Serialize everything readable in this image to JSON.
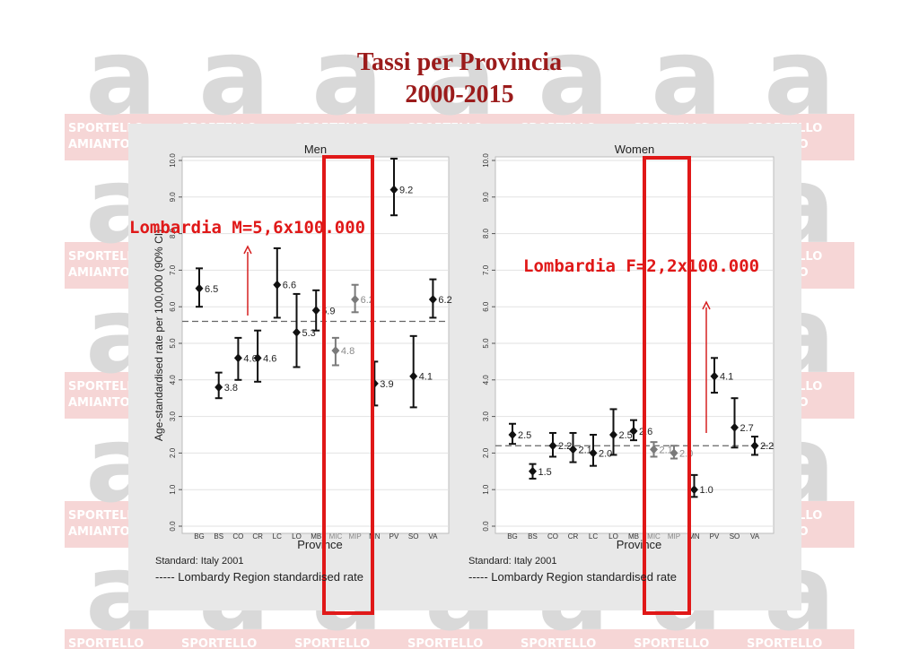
{
  "slide": {
    "title_line1": "Tassi per Provincia",
    "title_line2": "2000-2015",
    "watermark_text": "SPORTELLO AMIANTO",
    "watermark_glyph": "a",
    "colors": {
      "title": "#9b1b1b",
      "annotation": "#e01818",
      "watermark": "#d9d9d9",
      "panel": "#e8e8e8"
    }
  },
  "annotations": {
    "men": "Lombardia M=5,6x100.000",
    "women": "Lombardia F=2,2x100.000"
  },
  "footnotes": {
    "men_standard": "Standard: Italy 2001",
    "men_legend": "----- Lombardy Region standardised rate",
    "women_standard": "Standard: Italy 2001",
    "women_legend": "----- Lombardy Region standardised rate"
  },
  "chart_data": [
    {
      "type": "scatter",
      "title": "Men",
      "xlabel": "Province",
      "ylabel": "Age-standardised rate per 100,000 (90% CI)",
      "ylim": [
        0,
        10
      ],
      "yticks": [
        "0.0",
        "1.0",
        "2.0",
        "3.0",
        "4.0",
        "5.0",
        "6.0",
        "7.0",
        "8.0",
        "9.0",
        "10.0"
      ],
      "categories": [
        "BG",
        "BS",
        "CO",
        "CR",
        "LC",
        "LO",
        "MB",
        "MIC",
        "MIP",
        "MN",
        "PV",
        "SO",
        "VA"
      ],
      "values": [
        6.5,
        3.8,
        4.6,
        4.6,
        6.6,
        5.3,
        5.9,
        4.8,
        6.2,
        3.9,
        9.2,
        4.1,
        6.2
      ],
      "value_labels": [
        "6.5",
        "3.8",
        "4.6",
        "4.6",
        "6.6",
        "5.3",
        "5.9",
        "4.8",
        "6.2",
        "3.9",
        "9.2",
        "4.1",
        "6.2"
      ],
      "ci_low": [
        6.0,
        3.5,
        4.0,
        3.95,
        5.7,
        4.35,
        5.35,
        4.4,
        5.85,
        3.3,
        8.5,
        3.25,
        5.7
      ],
      "ci_high": [
        7.05,
        4.2,
        5.15,
        5.35,
        7.6,
        6.35,
        6.45,
        5.15,
        6.6,
        4.5,
        10.05,
        5.2,
        6.75
      ],
      "muted": [
        "MIC",
        "MIP"
      ],
      "reference_line": 5.6,
      "highlight": [
        "MIC",
        "MIP"
      ],
      "grid": true
    },
    {
      "type": "scatter",
      "title": "Women",
      "xlabel": "Province",
      "ylim": [
        0,
        10
      ],
      "yticks": [
        "0.0",
        "1.0",
        "2.0",
        "3.0",
        "4.0",
        "5.0",
        "6.0",
        "7.0",
        "8.0",
        "9.0",
        "10.0"
      ],
      "categories": [
        "BG",
        "BS",
        "CO",
        "CR",
        "LC",
        "LO",
        "MB",
        "MIC",
        "MIP",
        "MN",
        "PV",
        "SO",
        "VA"
      ],
      "values": [
        2.5,
        1.5,
        2.2,
        2.1,
        2.0,
        2.5,
        2.6,
        2.1,
        2.0,
        1.0,
        4.1,
        2.7,
        2.2
      ],
      "value_labels": [
        "2.5",
        "1.5",
        "2.2",
        "2.1",
        "2.0",
        "2.5",
        "2.6",
        "2.1",
        "2.0",
        "1.0",
        "4.1",
        "2.7",
        "2.2"
      ],
      "ci_low": [
        2.25,
        1.3,
        1.9,
        1.75,
        1.65,
        1.95,
        2.35,
        1.9,
        1.85,
        0.8,
        3.65,
        2.15,
        1.95
      ],
      "ci_high": [
        2.8,
        1.7,
        2.55,
        2.55,
        2.5,
        3.2,
        2.9,
        2.3,
        2.2,
        1.4,
        4.6,
        3.5,
        2.45
      ],
      "muted": [
        "MIC",
        "MIP"
      ],
      "reference_line": 2.2,
      "highlight": [
        "MIC",
        "MIP"
      ],
      "grid": true
    }
  ]
}
